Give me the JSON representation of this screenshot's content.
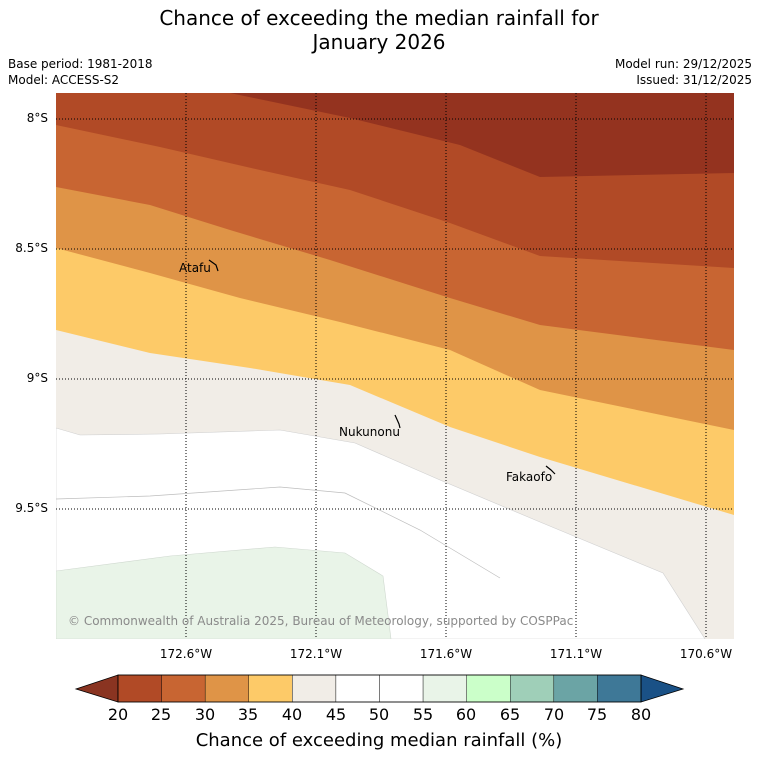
{
  "title_line1": "Chance of exceeding the median rainfall for",
  "title_line2": "January 2026",
  "base_period": "Base period: 1981-2018",
  "model": "Model: ACCESS-S2",
  "model_run": "Model run: 29/12/2025",
  "issued": "Issued: 31/12/2025",
  "lat_labels": [
    "8°S",
    "8.5°S",
    "9°S",
    "9.5°S"
  ],
  "lon_labels": [
    "172.6°W",
    "172.1°W",
    "171.6°W",
    "171.1°W",
    "170.6°W"
  ],
  "places": [
    "Atafu",
    "Nukunonu",
    "Fakaofo"
  ],
  "credit": "© Commonwealth of Australia 2025, Bureau of Meteorology, supported by COSPPac",
  "colorbar": {
    "label": "Chance of exceeding median rainfall (%)",
    "ticks": [
      "20",
      "25",
      "30",
      "35",
      "40",
      "45",
      "50",
      "55",
      "60",
      "65",
      "70",
      "75",
      "80"
    ],
    "under_color": "#8a3421",
    "over_color": "#1a5186",
    "colors": [
      "#b14a26",
      "#c86532",
      "#df9447",
      "#fdca68",
      "#f1ede7",
      "#ffffff",
      "#ffffff",
      "#e9f4e8",
      "#cbffc9",
      "#9fcfb8",
      "#6ba4a5",
      "#3e7897"
    ]
  },
  "map_colors": {
    "band_20_25": "#94331f",
    "band_25_30": "#b14a26",
    "band_30_35": "#c86532",
    "band_35_40": "#df9447",
    "band_40_45": "#fdca68",
    "band_45_50": "#f1ede7",
    "band_50_55": "#ffffff",
    "band_55_60": "#e9f4e8"
  }
}
